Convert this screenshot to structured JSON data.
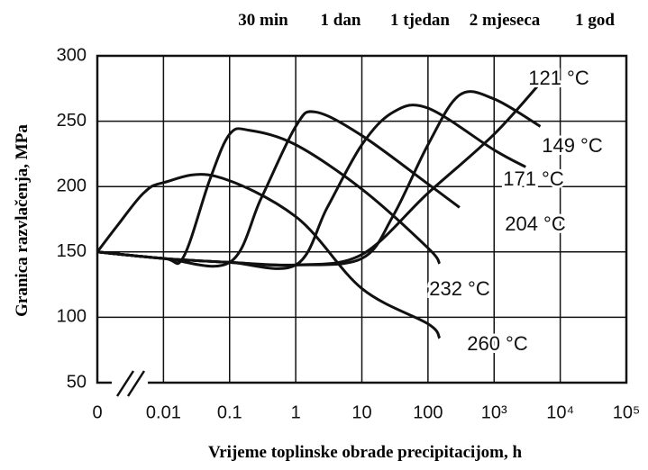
{
  "chart_data": {
    "type": "line",
    "y_label": "Granica razvlačenja, MPa",
    "x_label": "Vrijeme toplinske obrade precipitacijom, h",
    "top_labels": [
      "30 min",
      "1 dan",
      "1 tjedan",
      "2 mjeseca",
      "1 god"
    ],
    "log_x": true,
    "grid": true,
    "xlim": [
      0,
      100000
    ],
    "xticks": [
      0,
      0.01,
      0.1,
      1,
      10,
      100,
      {
        "value": 1000,
        "label": "10³"
      },
      {
        "value": 10000,
        "label": "10⁴"
      },
      {
        "value": 100000,
        "label": "10⁵"
      }
    ],
    "ylim": [
      50,
      300
    ],
    "yticks": [
      50,
      100,
      150,
      200,
      250,
      300
    ],
    "series": [
      {
        "name": "121 °C",
        "color": "#111",
        "x": [
          0,
          0.01,
          0.1,
          1,
          10,
          100,
          1000,
          6000
        ],
        "values": [
          150,
          145,
          142,
          140,
          148,
          195,
          240,
          284
        ]
      },
      {
        "name": "149 °C",
        "color": "#111",
        "x": [
          0,
          0.01,
          0.1,
          1,
          10,
          30,
          100,
          300,
          1000,
          5000
        ],
        "values": [
          150,
          145,
          142,
          140,
          145,
          178,
          232,
          270,
          267,
          246
        ]
      },
      {
        "name": "171 °C",
        "color": "#111",
        "x": [
          0,
          0.01,
          0.1,
          1,
          3,
          10,
          30,
          100,
          1000,
          3000
        ],
        "values": [
          150,
          145,
          142,
          140,
          184,
          232,
          257,
          260,
          228,
          215
        ]
      },
      {
        "name": "204 °C",
        "color": "#111",
        "x": [
          0,
          0.01,
          0.1,
          0.3,
          1,
          2,
          10,
          100,
          300
        ],
        "values": [
          150,
          145,
          142,
          191,
          246,
          257,
          239,
          202,
          184
        ]
      },
      {
        "name": "232 °C",
        "color": "#111",
        "x": [
          0,
          0.01,
          0.02,
          0.05,
          0.1,
          0.2,
          1,
          10,
          100,
          150
        ],
        "values": [
          150,
          145,
          146,
          205,
          240,
          243,
          232,
          198,
          153,
          141
        ]
      },
      {
        "name": "260 °C",
        "color": "#111",
        "x": [
          0,
          0.002,
          0.005,
          0.01,
          0.06,
          1,
          10,
          100,
          150
        ],
        "values": [
          150,
          170,
          195,
          203,
          208,
          177,
          122,
          95,
          84
        ]
      }
    ]
  }
}
